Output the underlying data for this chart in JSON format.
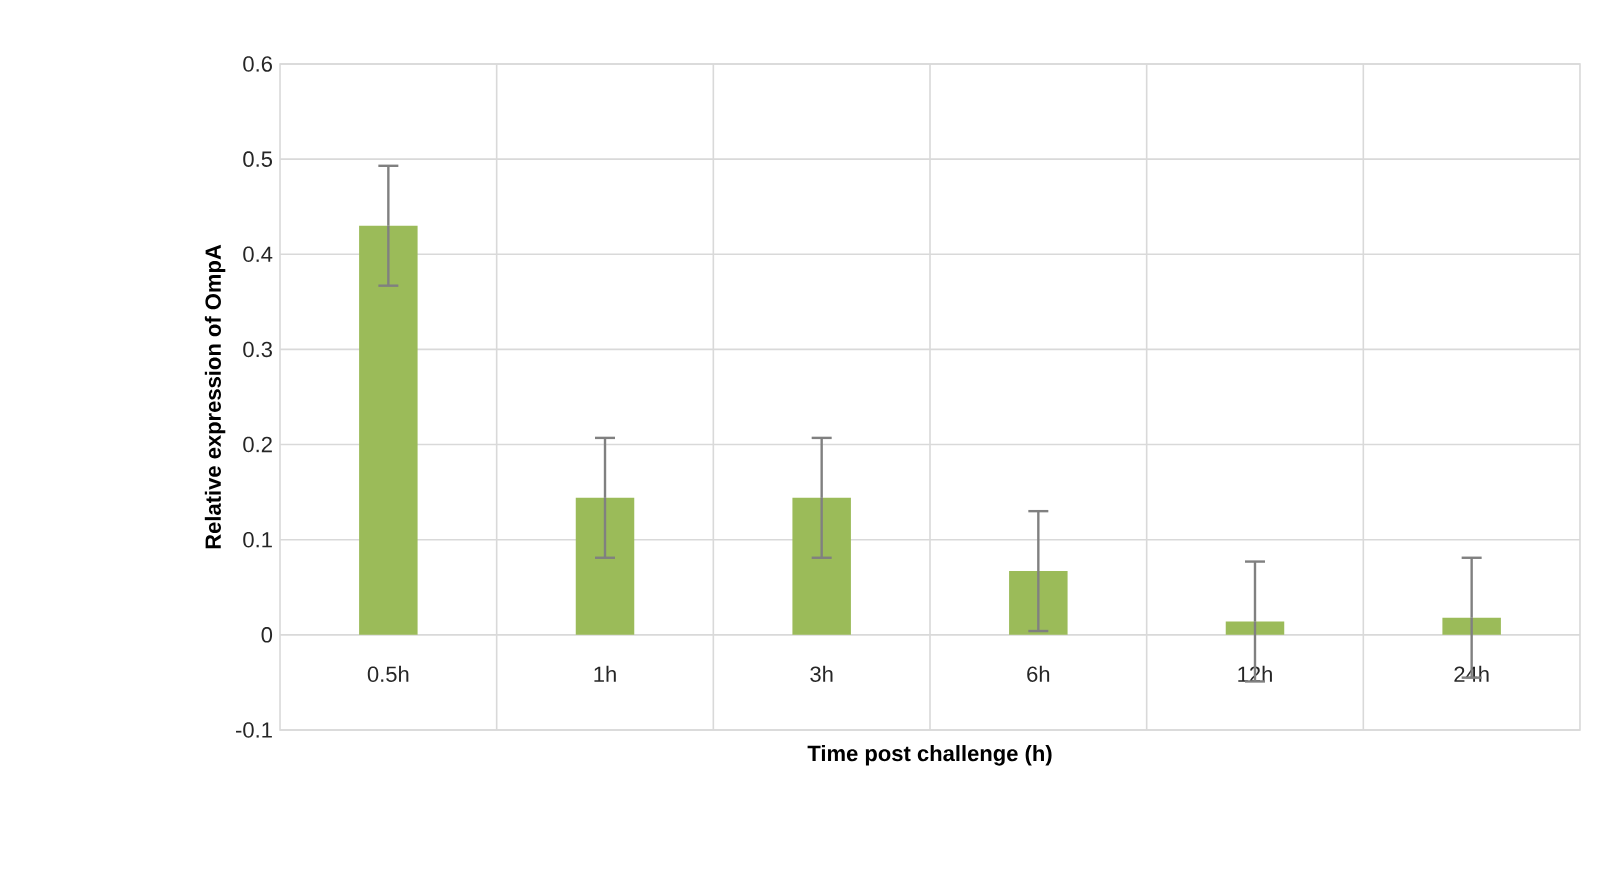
{
  "chart_data": {
    "type": "bar",
    "xlabel": "Time post challenge (h)",
    "ylabel": "Relative expression of OmpA",
    "categories": [
      "0.5h",
      "1h",
      "3h",
      "6h",
      "12h",
      "24h"
    ],
    "values": [
      0.43,
      0.144,
      0.144,
      0.067,
      0.014,
      0.018
    ],
    "errors": [
      0.063,
      0.063,
      0.063,
      0.063,
      0.063,
      0.063
    ],
    "color": "#9bbb59",
    "ylim": [
      -0.1,
      0.6
    ],
    "yticks": [
      -0.1,
      0,
      0.1,
      0.2,
      0.3,
      0.4,
      0.5,
      0.6
    ],
    "grid": true
  }
}
